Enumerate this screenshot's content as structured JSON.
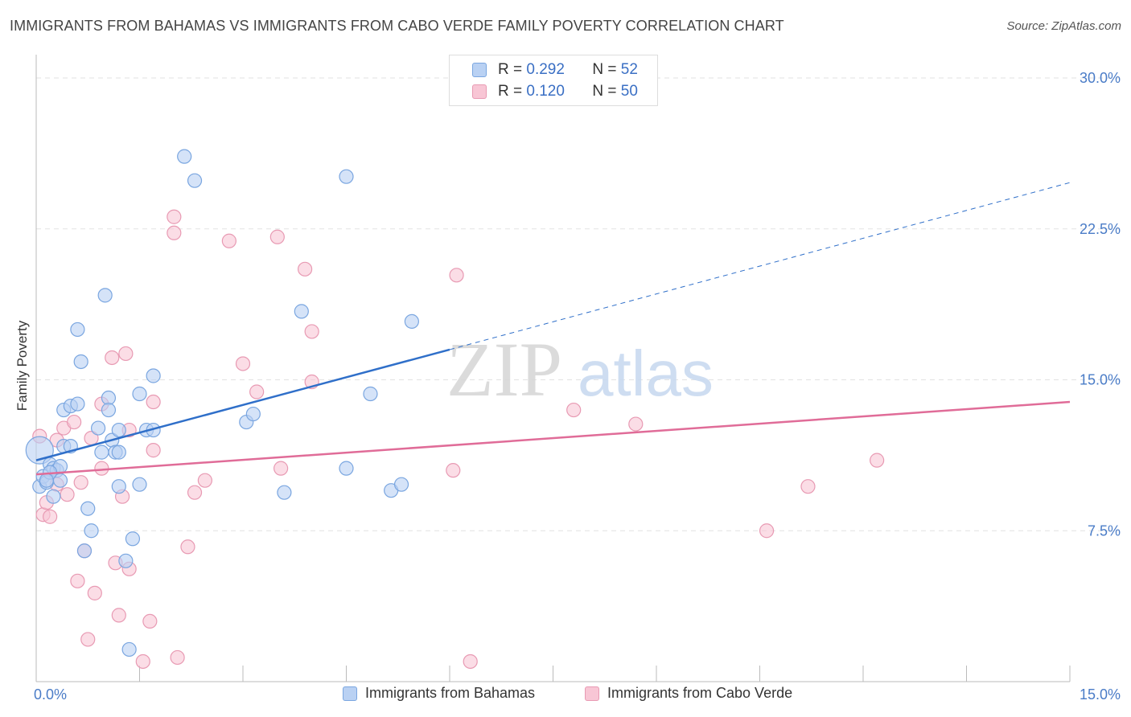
{
  "title": "IMMIGRANTS FROM BAHAMAS VS IMMIGRANTS FROM CABO VERDE FAMILY POVERTY CORRELATION CHART",
  "source": "Source: ZipAtlas.com",
  "watermark": {
    "zip": "ZIP",
    "atlas": "atlas"
  },
  "legend": {
    "r_label": "R =",
    "n_label": "N =",
    "series": [
      {
        "r": "0.292",
        "n": "52"
      },
      {
        "r": "0.120",
        "n": "50"
      }
    ]
  },
  "bottom_legend": {
    "bahamas": "Immigrants from Bahamas",
    "cabo_verde": "Immigrants from Cabo Verde"
  },
  "colors": {
    "bahamas_fill": "#b9d1f3",
    "bahamas_stroke": "#7aa6e0",
    "bahamas_line": "#2f6fc9",
    "cabo_fill": "#f8c6d5",
    "cabo_stroke": "#e89ab3",
    "cabo_line": "#e06c98"
  },
  "chart_data": {
    "type": "scatter",
    "title": "IMMIGRANTS FROM BAHAMAS VS IMMIGRANTS FROM CABO VERDE FAMILY POVERTY CORRELATION CHART",
    "xlabel": "",
    "ylabel": "Family Poverty",
    "xlim": [
      0,
      15
    ],
    "ylim": [
      0,
      30
    ],
    "x_tick_labels": [
      "0.0%",
      "15.0%"
    ],
    "y_ticks": [
      7.5,
      15.0,
      22.5,
      30.0
    ],
    "y_tick_labels": [
      "7.5%",
      "15.0%",
      "22.5%",
      "30.0%"
    ],
    "grid": "horizontal dashed",
    "series": [
      {
        "name": "Immigrants from Bahamas",
        "R": 0.292,
        "N": 52,
        "trend": {
          "x0": 0,
          "y0": 11.0,
          "x1": 6.0,
          "y1": 16.5,
          "extend_to_x": 15.0,
          "extend_y": 24.8
        },
        "points": [
          [
            0.05,
            11.5
          ],
          [
            0.05,
            9.7
          ],
          [
            0.1,
            10.2
          ],
          [
            0.15,
            9.9
          ],
          [
            0.2,
            10.8
          ],
          [
            0.25,
            10.6
          ],
          [
            0.3,
            10.5
          ],
          [
            0.35,
            10.7
          ],
          [
            0.25,
            9.2
          ],
          [
            0.35,
            10.0
          ],
          [
            0.4,
            11.7
          ],
          [
            0.5,
            11.7
          ],
          [
            0.4,
            13.5
          ],
          [
            0.5,
            13.7
          ],
          [
            0.6,
            13.8
          ],
          [
            0.65,
            15.9
          ],
          [
            0.6,
            17.5
          ],
          [
            0.75,
            8.6
          ],
          [
            0.8,
            7.5
          ],
          [
            0.7,
            6.5
          ],
          [
            0.9,
            12.6
          ],
          [
            0.95,
            11.4
          ],
          [
            1.0,
            19.2
          ],
          [
            1.05,
            14.1
          ],
          [
            1.05,
            13.5
          ],
          [
            1.1,
            12.0
          ],
          [
            1.15,
            11.4
          ],
          [
            1.2,
            9.7
          ],
          [
            1.2,
            11.4
          ],
          [
            1.3,
            6.0
          ],
          [
            1.4,
            7.1
          ],
          [
            1.5,
            14.3
          ],
          [
            1.5,
            9.8
          ],
          [
            1.6,
            12.5
          ],
          [
            1.7,
            15.2
          ],
          [
            1.7,
            12.5
          ],
          [
            2.15,
            26.1
          ],
          [
            2.3,
            24.9
          ],
          [
            1.35,
            1.6
          ],
          [
            3.05,
            12.9
          ],
          [
            3.15,
            13.3
          ],
          [
            3.85,
            18.4
          ],
          [
            3.6,
            9.4
          ],
          [
            4.5,
            25.1
          ],
          [
            4.5,
            10.6
          ],
          [
            4.85,
            14.3
          ],
          [
            5.15,
            9.5
          ],
          [
            5.3,
            9.8
          ],
          [
            5.45,
            17.9
          ],
          [
            1.2,
            12.5
          ],
          [
            0.2,
            10.4
          ],
          [
            0.15,
            10.0
          ]
        ]
      },
      {
        "name": "Immigrants from Cabo Verde",
        "R": 0.12,
        "N": 50,
        "trend": {
          "x0": 0,
          "y0": 10.3,
          "x1": 15.0,
          "y1": 13.9
        },
        "points": [
          [
            0.05,
            12.2
          ],
          [
            0.1,
            8.3
          ],
          [
            0.15,
            8.9
          ],
          [
            0.2,
            8.2
          ],
          [
            0.3,
            9.8
          ],
          [
            0.4,
            12.6
          ],
          [
            0.45,
            9.3
          ],
          [
            0.55,
            12.9
          ],
          [
            0.6,
            5.0
          ],
          [
            0.65,
            9.9
          ],
          [
            0.7,
            6.5
          ],
          [
            0.75,
            2.1
          ],
          [
            0.8,
            12.1
          ],
          [
            0.85,
            4.4
          ],
          [
            0.95,
            13.8
          ],
          [
            0.95,
            10.6
          ],
          [
            1.1,
            16.1
          ],
          [
            1.15,
            5.9
          ],
          [
            1.2,
            3.3
          ],
          [
            1.25,
            9.2
          ],
          [
            1.3,
            16.3
          ],
          [
            1.35,
            12.5
          ],
          [
            1.35,
            5.6
          ],
          [
            1.55,
            1.0
          ],
          [
            1.65,
            3.0
          ],
          [
            1.7,
            13.9
          ],
          [
            1.7,
            11.5
          ],
          [
            2.0,
            23.1
          ],
          [
            2.0,
            22.3
          ],
          [
            2.05,
            1.2
          ],
          [
            2.2,
            6.7
          ],
          [
            2.3,
            9.4
          ],
          [
            2.45,
            10.0
          ],
          [
            2.8,
            21.9
          ],
          [
            3.0,
            15.8
          ],
          [
            3.2,
            14.4
          ],
          [
            3.5,
            22.1
          ],
          [
            3.55,
            10.6
          ],
          [
            3.9,
            20.5
          ],
          [
            4.0,
            17.4
          ],
          [
            4.0,
            14.9
          ],
          [
            6.1,
            20.2
          ],
          [
            6.05,
            10.5
          ],
          [
            6.3,
            1.0
          ],
          [
            7.8,
            13.5
          ],
          [
            8.7,
            12.8
          ],
          [
            10.6,
            7.5
          ],
          [
            11.2,
            9.7
          ],
          [
            12.2,
            11.0
          ],
          [
            0.3,
            12.0
          ]
        ]
      }
    ]
  }
}
